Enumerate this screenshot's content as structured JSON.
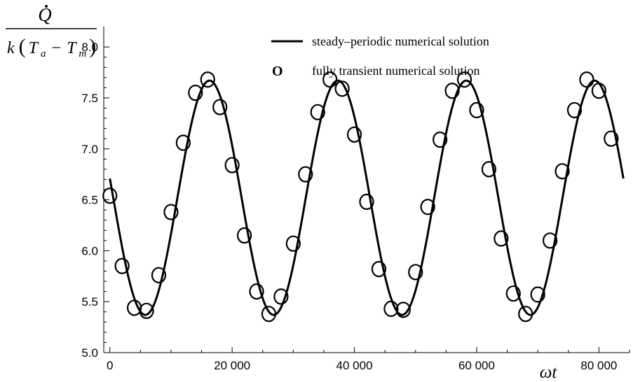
{
  "chart_data": {
    "type": "line",
    "title": "",
    "xlabel": "ωt",
    "ylabel": "Q̇ / k(T_a − T_m)",
    "xlim": [
      -1000,
      85000
    ],
    "ylim": [
      5.0,
      8.2
    ],
    "grid": false,
    "legend_position": "top-right",
    "x_ticks": [
      0,
      20000,
      40000,
      60000,
      80000
    ],
    "x_tick_labels": [
      "0",
      "20 000",
      "40 000",
      "60 000",
      "80 000"
    ],
    "y_ticks": [
      5.0,
      5.5,
      6.0,
      6.5,
      7.0,
      7.5,
      8.0
    ],
    "y_tick_labels": [
      "5.0",
      "5.5",
      "6.0",
      "6.5",
      "7.0",
      "7.5",
      "8.0"
    ],
    "series": [
      {
        "name": "steady–periodic numerical solution",
        "style": "line",
        "color": "#000000",
        "model": {
          "mean": 6.52,
          "amplitude": 1.15,
          "period": 21000,
          "peak_x": 16300,
          "x_start": 0,
          "x_end": 84000
        }
      },
      {
        "name": "fully transient numerical solution",
        "style": "marker",
        "marker": "O",
        "color": "#000000",
        "points": [
          [
            0,
            6.54
          ],
          [
            2000,
            5.85
          ],
          [
            4000,
            5.44
          ],
          [
            6000,
            5.41
          ],
          [
            8000,
            5.76
          ],
          [
            10000,
            6.38
          ],
          [
            12000,
            7.06
          ],
          [
            14000,
            7.55
          ],
          [
            16000,
            7.68
          ],
          [
            18000,
            7.41
          ],
          [
            20000,
            6.84
          ],
          [
            22000,
            6.15
          ],
          [
            24000,
            5.6
          ],
          [
            26000,
            5.38
          ],
          [
            28000,
            5.55
          ],
          [
            30000,
            6.07
          ],
          [
            32000,
            6.75
          ],
          [
            34000,
            7.36
          ],
          [
            36000,
            7.68
          ],
          [
            38000,
            7.59
          ],
          [
            40000,
            7.14
          ],
          [
            42000,
            6.48
          ],
          [
            44000,
            5.82
          ],
          [
            46000,
            5.43
          ],
          [
            48000,
            5.42
          ],
          [
            50000,
            5.79
          ],
          [
            52000,
            6.43
          ],
          [
            54000,
            7.09
          ],
          [
            56000,
            7.57
          ],
          [
            58000,
            7.68
          ],
          [
            60000,
            7.38
          ],
          [
            62000,
            6.8
          ],
          [
            64000,
            6.12
          ],
          [
            66000,
            5.58
          ],
          [
            68000,
            5.38
          ],
          [
            70000,
            5.57
          ],
          [
            72000,
            6.1
          ],
          [
            74000,
            6.78
          ],
          [
            76000,
            7.38
          ],
          [
            78000,
            7.68
          ],
          [
            80000,
            7.57
          ],
          [
            82000,
            7.1
          ]
        ]
      }
    ]
  }
}
